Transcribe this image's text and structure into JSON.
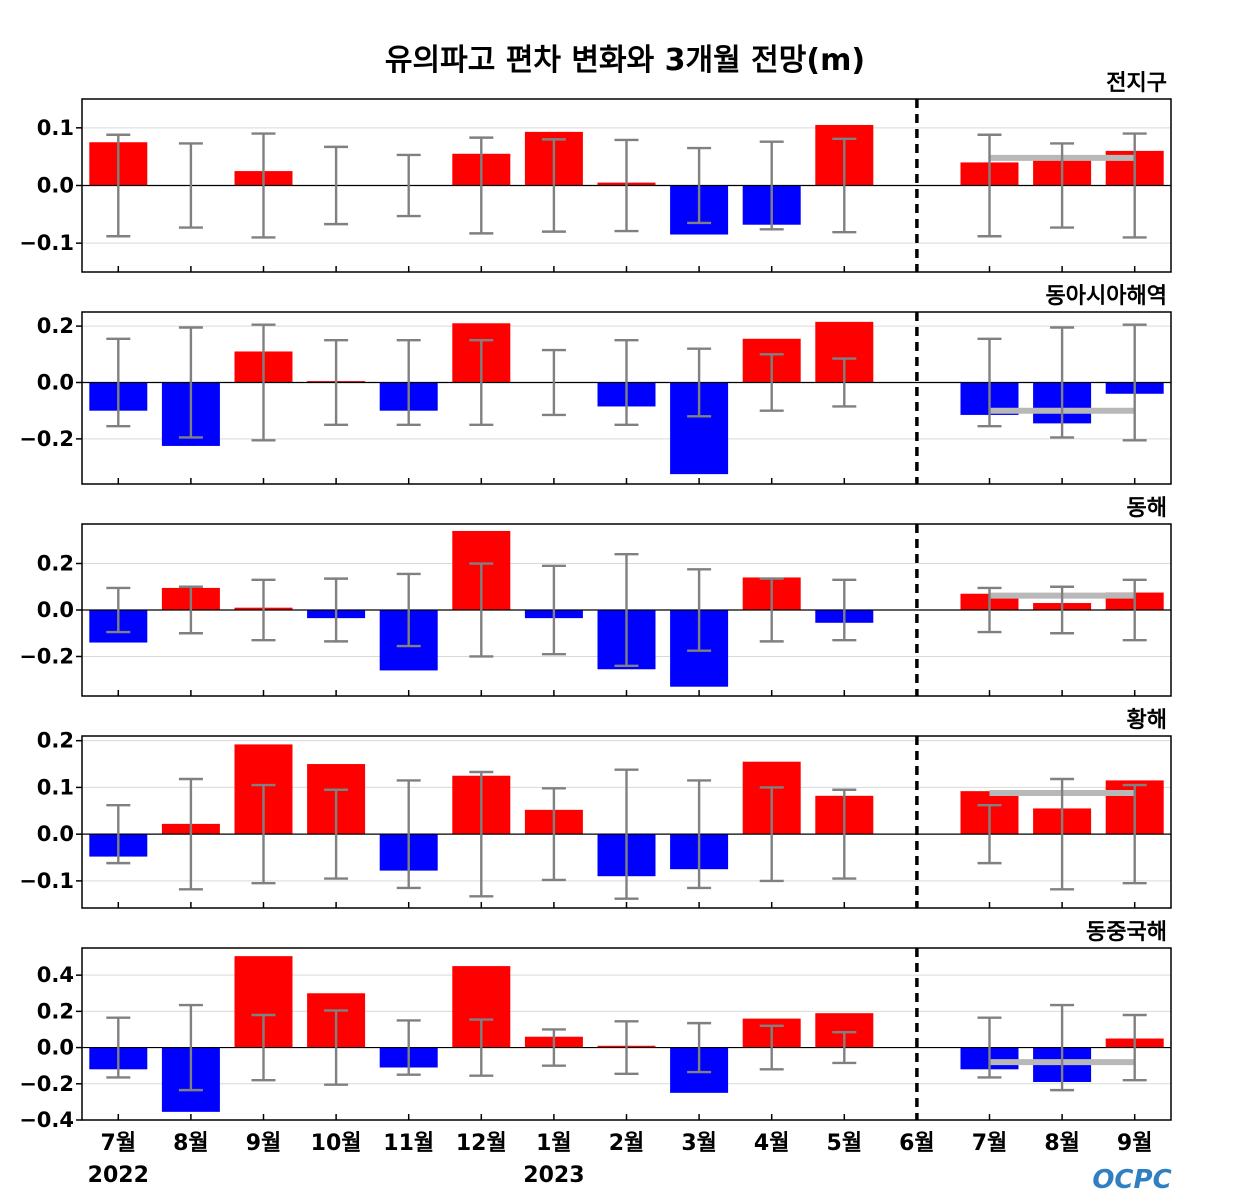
{
  "title": "유의파고 편차 변화와 3개월 전망(m)",
  "logo_text": "OCPC",
  "colors": {
    "positive": "#ff0000",
    "negative": "#0000ff",
    "error": "#808080",
    "forecast_line": "#b8b8b8",
    "grid": "#d9d9d9"
  },
  "x_labels": [
    "7월",
    "8월",
    "9월",
    "10월",
    "11월",
    "12월",
    "1월",
    "2월",
    "3월",
    "4월",
    "5월",
    "6월",
    "7월",
    "8월",
    "9월"
  ],
  "year_labels": [
    {
      "text": "2022",
      "index": 0
    },
    {
      "text": "2023",
      "index": 6
    }
  ],
  "chart_data": [
    {
      "type": "bar",
      "title": "전지구",
      "ylim": [
        -0.15,
        0.15
      ],
      "yticks": [
        -0.1,
        0.0,
        0.1
      ],
      "yticklabels": [
        "−0.1",
        "0.0",
        "0.1"
      ],
      "values": [
        0.075,
        0.0,
        0.025,
        0.0,
        0.0,
        0.055,
        0.093,
        0.005,
        -0.085,
        -0.068,
        0.105,
        0.0,
        0.04,
        0.05,
        0.06
      ],
      "errors": [
        0.088,
        0.073,
        0.09,
        0.067,
        0.053,
        0.083,
        0.08,
        0.079,
        0.065,
        0.076,
        0.081,
        0.0,
        0.088,
        0.073,
        0.09
      ],
      "forecast_reference": 0.048,
      "divider_index": 11,
      "grid": true
    },
    {
      "type": "bar",
      "title": "동아시아해역",
      "ylim": [
        -0.36,
        0.25
      ],
      "yticks": [
        -0.2,
        0.0,
        0.2
      ],
      "yticklabels": [
        "−0.2",
        "0.0",
        "0.2"
      ],
      "values": [
        -0.1,
        -0.225,
        0.11,
        0.005,
        -0.1,
        0.21,
        0.0,
        -0.085,
        -0.325,
        0.155,
        0.215,
        0.0,
        -0.115,
        -0.145,
        -0.04
      ],
      "errors": [
        0.155,
        0.195,
        0.205,
        0.15,
        0.15,
        0.15,
        0.115,
        0.15,
        0.12,
        0.1,
        0.085,
        0.0,
        0.155,
        0.195,
        0.205
      ],
      "forecast_reference": -0.1,
      "divider_index": 11,
      "grid": true
    },
    {
      "type": "bar",
      "title": "동해",
      "ylim": [
        -0.37,
        0.37
      ],
      "yticks": [
        -0.2,
        0.0,
        0.2
      ],
      "yticklabels": [
        "−0.2",
        "0.0",
        "0.2"
      ],
      "values": [
        -0.14,
        0.095,
        0.01,
        -0.035,
        -0.26,
        0.34,
        -0.035,
        -0.255,
        -0.33,
        0.14,
        -0.055,
        0.0,
        0.07,
        0.03,
        0.075
      ],
      "errors": [
        0.095,
        0.1,
        0.13,
        0.135,
        0.155,
        0.2,
        0.19,
        0.24,
        0.175,
        0.135,
        0.13,
        0.0,
        0.095,
        0.1,
        0.13
      ],
      "forecast_reference": 0.062,
      "divider_index": 11,
      "grid": true
    },
    {
      "type": "bar",
      "title": "황해",
      "ylim": [
        -0.158,
        0.21
      ],
      "yticks": [
        -0.1,
        0.0,
        0.1,
        0.2
      ],
      "yticklabels": [
        "−0.1",
        "0.0",
        "0.1",
        "0.2"
      ],
      "values": [
        -0.048,
        0.022,
        0.192,
        0.15,
        -0.078,
        0.125,
        0.052,
        -0.09,
        -0.075,
        0.155,
        0.082,
        0.0,
        0.092,
        0.055,
        0.115
      ],
      "errors": [
        0.062,
        0.118,
        0.105,
        0.095,
        0.115,
        0.133,
        0.098,
        0.138,
        0.115,
        0.1,
        0.095,
        0.0,
        0.062,
        0.118,
        0.105
      ],
      "forecast_reference": 0.088,
      "divider_index": 11,
      "grid": true
    },
    {
      "type": "bar",
      "title": "동중국해",
      "ylim": [
        -0.4,
        0.55
      ],
      "yticks": [
        -0.4,
        -0.2,
        0.0,
        0.2,
        0.4
      ],
      "yticklabels": [
        "−0.4",
        "−0.2",
        "0.0",
        "0.2",
        "0.4"
      ],
      "values": [
        -0.12,
        -0.355,
        0.505,
        0.3,
        -0.11,
        0.45,
        0.06,
        0.01,
        -0.25,
        0.16,
        0.19,
        0.0,
        -0.12,
        -0.19,
        0.05
      ],
      "errors": [
        0.165,
        0.235,
        0.18,
        0.205,
        0.15,
        0.155,
        0.1,
        0.145,
        0.135,
        0.12,
        0.085,
        0.0,
        0.165,
        0.235,
        0.18
      ],
      "forecast_reference": -0.08,
      "divider_index": 11,
      "grid": true
    }
  ]
}
